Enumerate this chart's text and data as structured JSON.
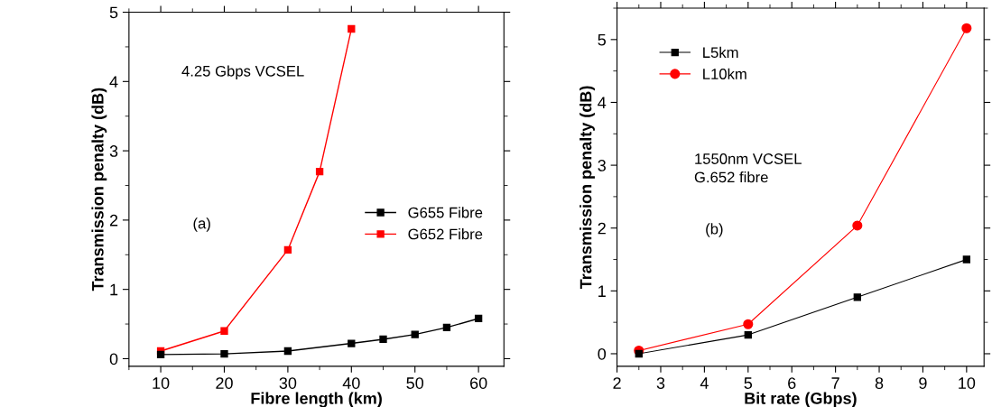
{
  "chart_data": [
    {
      "type": "line",
      "xlabel": "Fibre length (km)",
      "ylabel": "Transmission penalty (dB)",
      "annotations": [
        "4.25 Gbps VCSEL",
        "(a)"
      ],
      "xlim": [
        5,
        64
      ],
      "xticks": [
        10,
        20,
        30,
        40,
        50,
        60
      ],
      "ylim": [
        -0.11,
        5
      ],
      "yticks": [
        0,
        1,
        2,
        3,
        4,
        5
      ],
      "grid": false,
      "legend": "right",
      "marker": "square",
      "series": [
        {
          "name": "G655 Fibre",
          "color": "#000000",
          "x": [
            10,
            20,
            30,
            40,
            45,
            50,
            55,
            60
          ],
          "values": [
            0.06,
            0.07,
            0.11,
            0.22,
            0.28,
            0.35,
            0.45,
            0.58
          ]
        },
        {
          "name": "G652 Fibre",
          "color": "#ff0000",
          "x": [
            10,
            20,
            30,
            35,
            40
          ],
          "values": [
            0.11,
            0.4,
            1.57,
            2.7,
            4.76
          ]
        }
      ]
    },
    {
      "type": "line",
      "xlabel": "Bit rate (Gbps)",
      "ylabel": "Transmission penalty (dB)",
      "annotations": [
        "1550nm VCSEL\nG.652 fibre",
        "(b)"
      ],
      "xlim": [
        2,
        10.4
      ],
      "xticks": [
        2,
        3,
        4,
        5,
        6,
        7,
        8,
        9,
        10
      ],
      "ylim": [
        -0.2,
        5.5
      ],
      "yticks": [
        0,
        1,
        2,
        3,
        4,
        5
      ],
      "grid": false,
      "legend": "top left",
      "series": [
        {
          "name": "L5km",
          "color": "#000000",
          "marker": "square",
          "x": [
            2.5,
            5,
            7.5,
            10
          ],
          "values": [
            0.0,
            0.3,
            0.9,
            1.5
          ]
        },
        {
          "name": "L10km",
          "color": "#ff0000",
          "marker": "circle",
          "x": [
            2.5,
            5,
            7.5,
            10
          ],
          "values": [
            0.05,
            0.47,
            2.04,
            5.18
          ]
        }
      ]
    }
  ]
}
